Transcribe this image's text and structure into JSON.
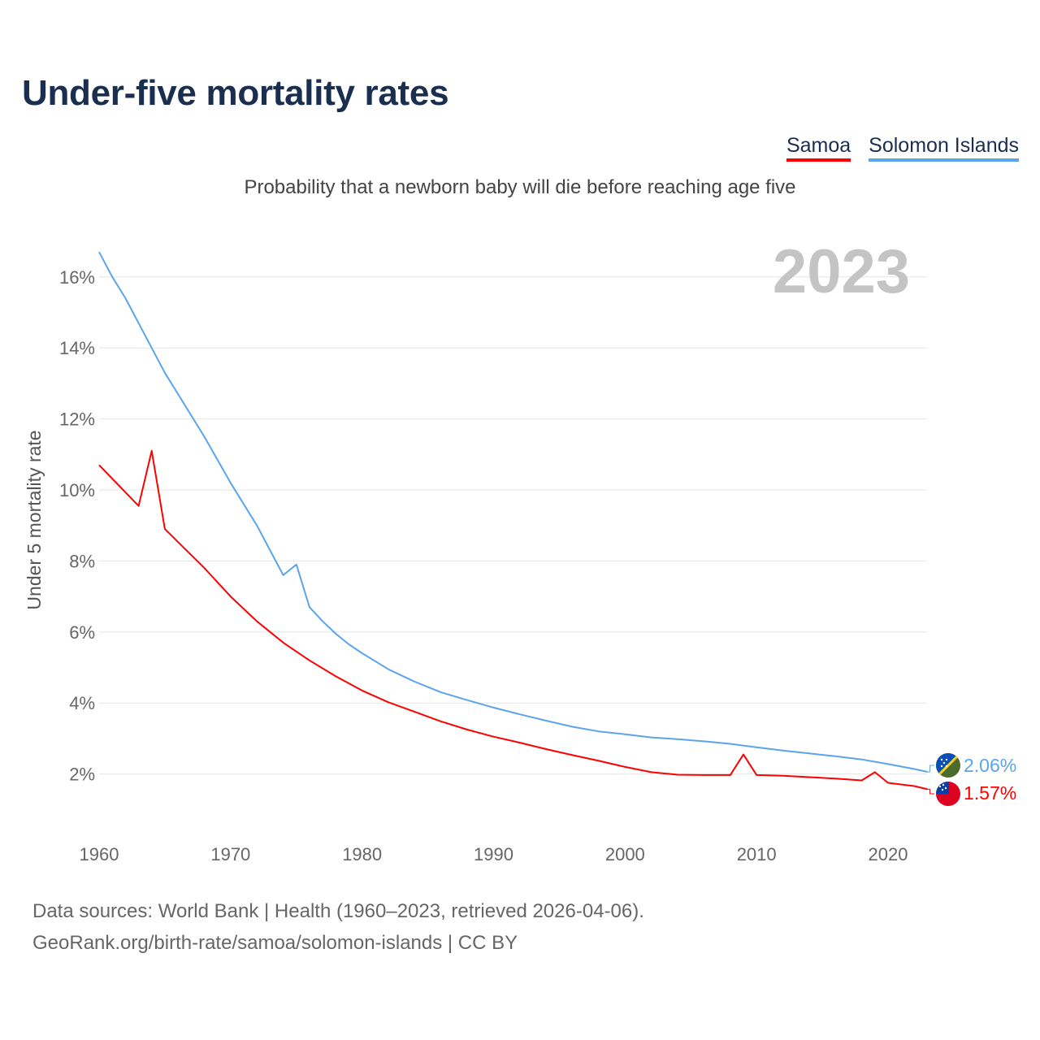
{
  "title": "Under-five mortality rates",
  "subtitle": "Probability that a newborn baby will die before reaching age five",
  "footer": {
    "line1": "Data sources: World Bank | Health (1960–2023, retrieved 2026-04-06).",
    "line2": "GeoRank.org/birth-rate/samoa/solomon-islands | CC BY"
  },
  "chart_data": {
    "type": "line",
    "title": "Under-five mortality rates",
    "ylabel": "Under 5 mortality rate",
    "xlabel": "",
    "year_label": "2023",
    "xlim": [
      1960,
      2023
    ],
    "ylim": [
      0,
      17
    ],
    "x_ticks": [
      "1960",
      "1970",
      "1980",
      "1990",
      "2000",
      "2010",
      "2020"
    ],
    "y_ticks": [
      2,
      4,
      6,
      8,
      10,
      12,
      14,
      16
    ],
    "y_tick_labels": [
      "2%",
      "4%",
      "6%",
      "8%",
      "10%",
      "12%",
      "14%",
      "16%"
    ],
    "grid": true,
    "legend_position": "top-right",
    "series": [
      {
        "name": "Samoa",
        "color": "#ff0000",
        "end_label": "1.57%",
        "flag": "samoa-flag",
        "points": [
          [
            1960,
            10.7
          ],
          [
            1963,
            9.55
          ],
          [
            1964,
            11.1
          ],
          [
            1965,
            8.9
          ],
          [
            1968,
            7.8
          ],
          [
            1970,
            7.0
          ],
          [
            1972,
            6.3
          ],
          [
            1974,
            5.7
          ],
          [
            1976,
            5.2
          ],
          [
            1978,
            4.75
          ],
          [
            1980,
            4.35
          ],
          [
            1982,
            4.02
          ],
          [
            1984,
            3.75
          ],
          [
            1986,
            3.48
          ],
          [
            1988,
            3.25
          ],
          [
            1990,
            3.05
          ],
          [
            1992,
            2.88
          ],
          [
            1994,
            2.7
          ],
          [
            1996,
            2.53
          ],
          [
            1998,
            2.37
          ],
          [
            2000,
            2.2
          ],
          [
            2002,
            2.05
          ],
          [
            2004,
            1.98
          ],
          [
            2006,
            1.97
          ],
          [
            2008,
            1.97
          ],
          [
            2009,
            2.55
          ],
          [
            2010,
            1.97
          ],
          [
            2012,
            1.95
          ],
          [
            2014,
            1.91
          ],
          [
            2016,
            1.87
          ],
          [
            2018,
            1.82
          ],
          [
            2019,
            2.05
          ],
          [
            2020,
            1.75
          ],
          [
            2022,
            1.66
          ],
          [
            2023,
            1.57
          ]
        ]
      },
      {
        "name": "Solomon Islands",
        "color": "#5ba4ec",
        "end_label": "2.06%",
        "flag": "solomon-islands-flag",
        "points": [
          [
            1960,
            16.7
          ],
          [
            1961,
            16.0
          ],
          [
            1962,
            15.4
          ],
          [
            1964,
            14.0
          ],
          [
            1965,
            13.3
          ],
          [
            1966,
            12.7
          ],
          [
            1968,
            11.5
          ],
          [
            1970,
            10.2
          ],
          [
            1972,
            9.0
          ],
          [
            1974,
            7.6
          ],
          [
            1975,
            7.9
          ],
          [
            1976,
            6.7
          ],
          [
            1977,
            6.3
          ],
          [
            1978,
            5.95
          ],
          [
            1979,
            5.65
          ],
          [
            1980,
            5.4
          ],
          [
            1982,
            4.95
          ],
          [
            1984,
            4.6
          ],
          [
            1986,
            4.3
          ],
          [
            1988,
            4.08
          ],
          [
            1990,
            3.87
          ],
          [
            1992,
            3.68
          ],
          [
            1994,
            3.5
          ],
          [
            1996,
            3.33
          ],
          [
            1998,
            3.2
          ],
          [
            2000,
            3.12
          ],
          [
            2002,
            3.03
          ],
          [
            2004,
            2.98
          ],
          [
            2006,
            2.92
          ],
          [
            2008,
            2.85
          ],
          [
            2010,
            2.75
          ],
          [
            2012,
            2.66
          ],
          [
            2014,
            2.58
          ],
          [
            2016,
            2.5
          ],
          [
            2018,
            2.41
          ],
          [
            2020,
            2.28
          ],
          [
            2022,
            2.14
          ],
          [
            2023,
            2.06
          ]
        ]
      }
    ]
  }
}
